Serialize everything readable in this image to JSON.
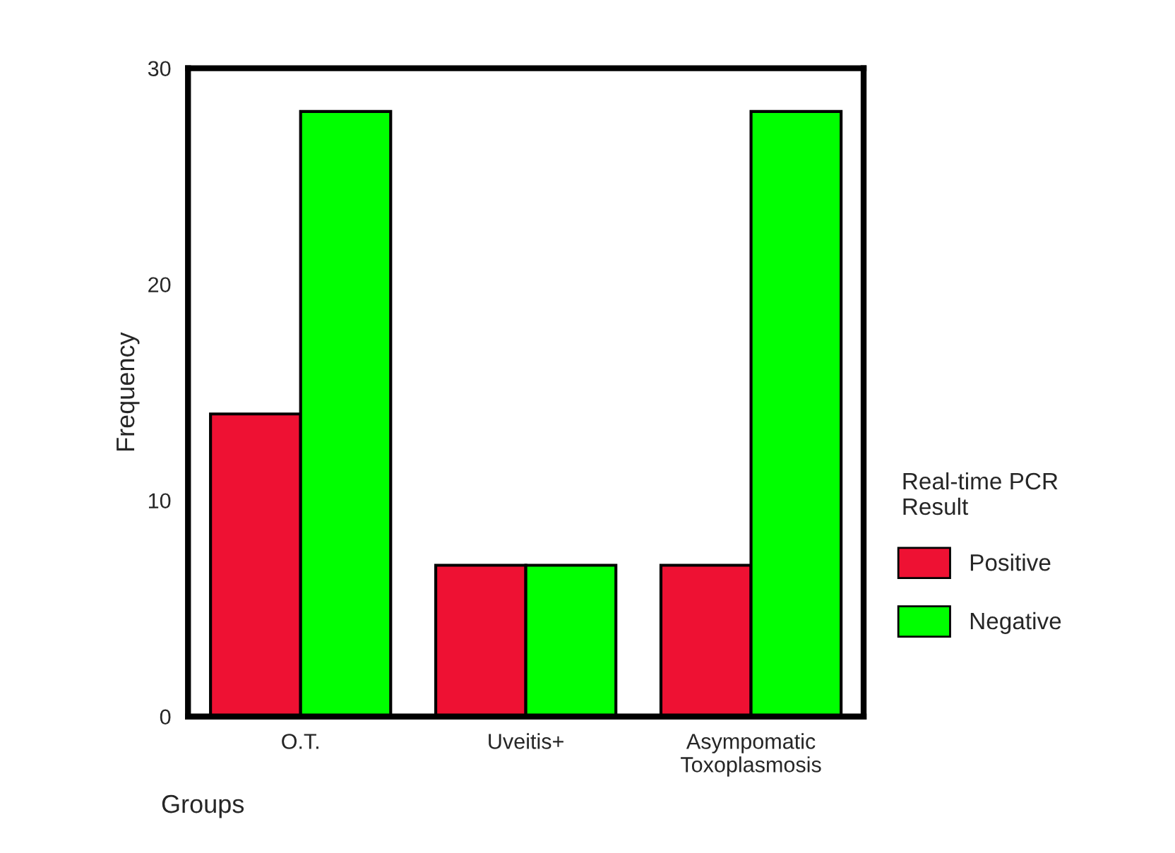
{
  "chart_data": {
    "type": "bar",
    "xlabel": "Groups",
    "ylabel": "Frequency",
    "legend_title": "Real-time PCR\nResult",
    "categories": [
      "O.T.",
      "Uveitis+",
      "Asympomatic\nToxoplasmosis"
    ],
    "series": [
      {
        "name": "Positive",
        "color": "#ee1133",
        "values": [
          14,
          7,
          7
        ]
      },
      {
        "name": "Negative",
        "color": "#00ff00",
        "values": [
          28,
          7,
          28
        ]
      }
    ],
    "ylim": [
      0,
      30
    ],
    "yticks": [
      0,
      10,
      20,
      30
    ],
    "grid": false,
    "legend": "right"
  }
}
